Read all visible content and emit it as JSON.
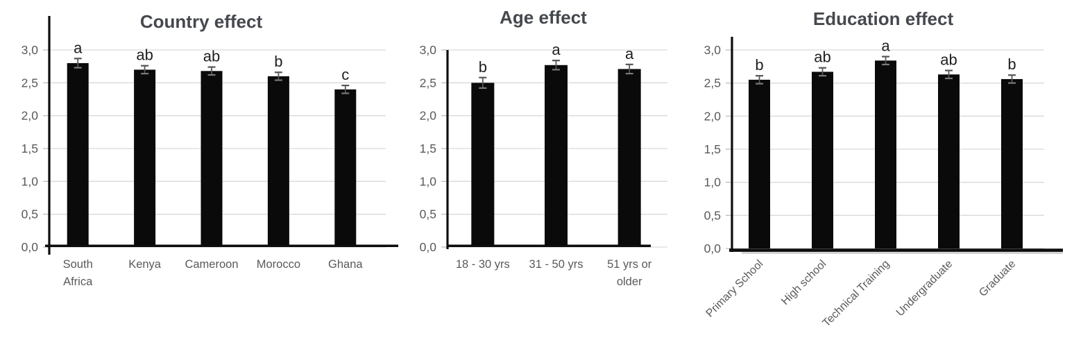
{
  "figure": {
    "background": "#ffffff",
    "description_visible_text_only": true
  },
  "colors": {
    "bar": "#0a0a0a",
    "error_bar": "#565656",
    "gridline": "#d9d9d9",
    "axis": "#0d0d0d",
    "title_text": "#45484d",
    "axis_label_text": "#595959",
    "sig_letter_text": "#1f1f1f"
  },
  "chart_data": [
    {
      "type": "bar",
      "title": "Country effect",
      "categories": [
        "South\nAfrica",
        "Kenya",
        "Cameroon",
        "Morocco",
        "Ghana"
      ],
      "values": [
        2.8,
        2.7,
        2.68,
        2.6,
        2.4
      ],
      "errors": [
        0.07,
        0.06,
        0.06,
        0.06,
        0.06
      ],
      "sig_letters": [
        "a",
        "ab",
        "ab",
        "b",
        "c"
      ],
      "xlabel": "",
      "ylabel": "",
      "ylim": [
        0,
        3.0
      ],
      "ytick_values": [
        0,
        0.5,
        1,
        1.5,
        2,
        2.5,
        3
      ],
      "ytick_labels": [
        "0,0",
        "0,5",
        "1,0",
        "1,5",
        "2,0",
        "2,5",
        "3,0"
      ],
      "grid": true,
      "legend": false,
      "bar_color": "#0a0a0a"
    },
    {
      "type": "bar",
      "title": "Age effect",
      "categories": [
        "18 - 30 yrs",
        "31 - 50 yrs",
        "51 yrs or\nolder"
      ],
      "values": [
        2.5,
        2.77,
        2.71
      ],
      "errors": [
        0.08,
        0.07,
        0.07
      ],
      "sig_letters": [
        "b",
        "a",
        "a"
      ],
      "xlabel": "",
      "ylabel": "",
      "ylim": [
        0,
        3.0
      ],
      "ytick_values": [
        0,
        0.5,
        1,
        1.5,
        2,
        2.5,
        3
      ],
      "ytick_labels": [
        "0,0",
        "0,5",
        "1,0",
        "1,5",
        "2,0",
        "2,5",
        "3,0"
      ],
      "grid": true,
      "legend": false,
      "bar_color": "#0a0a0a"
    },
    {
      "type": "bar",
      "title": "Education effect",
      "categories": [
        "Primary School",
        "High school",
        "Technical Training",
        "Undergraduate",
        "Graduate"
      ],
      "values": [
        2.55,
        2.67,
        2.84,
        2.63,
        2.56
      ],
      "errors": [
        0.06,
        0.06,
        0.06,
        0.06,
        0.06
      ],
      "sig_letters": [
        "b",
        "ab",
        "a",
        "ab",
        "b"
      ],
      "xlabel": "",
      "ylabel": "",
      "ylim": [
        0,
        3.0
      ],
      "ytick_values": [
        0,
        0.5,
        1,
        1.5,
        2,
        2.5,
        3
      ],
      "ytick_labels": [
        "0,0",
        "0,5",
        "1,0",
        "1,5",
        "2,0",
        "2,5",
        "3,0"
      ],
      "grid": true,
      "legend": false,
      "bar_color": "#0a0a0a",
      "category_label_rotation_deg": 45
    }
  ]
}
